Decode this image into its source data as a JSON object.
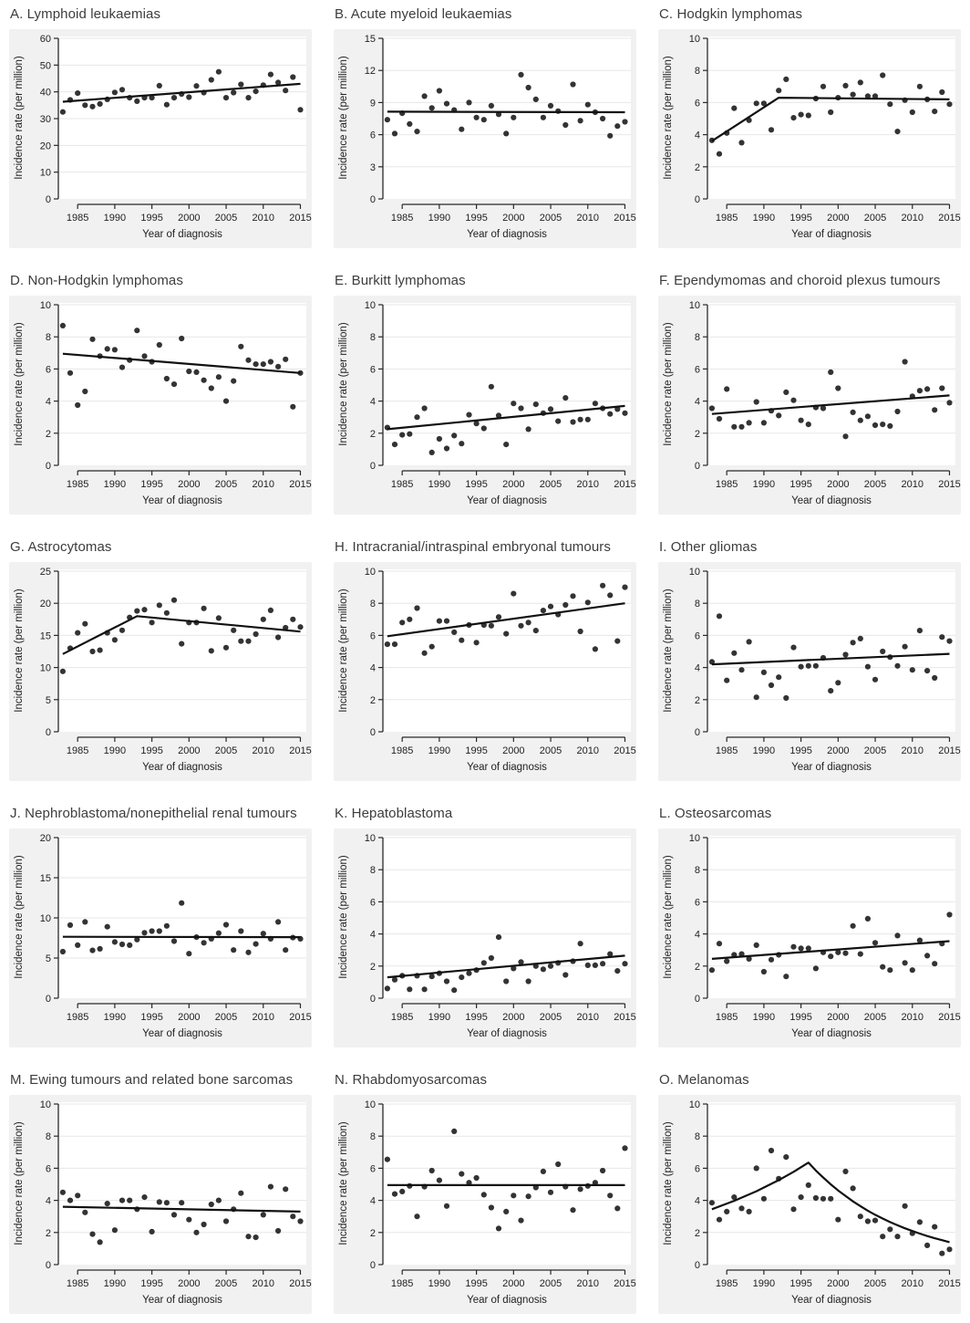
{
  "style": {
    "panel_bg": "#f1f1f1",
    "plot_bg": "#ffffff",
    "grid_color": "#e7e7e7",
    "axis_color": "#2a2a2a",
    "point_color": "#333333",
    "trend_color": "#111111",
    "title_color": "#3c3c3c"
  },
  "years": [
    1983,
    1984,
    1985,
    1986,
    1987,
    1988,
    1989,
    1990,
    1991,
    1992,
    1993,
    1994,
    1995,
    1996,
    1997,
    1998,
    1999,
    2000,
    2001,
    2002,
    2003,
    2004,
    2005,
    2006,
    2007,
    2008,
    2009,
    2010,
    2011,
    2012,
    2013,
    2014,
    2015
  ],
  "chart_data": [
    {
      "panel": "A",
      "title": "A. Lymphoid leukaemias",
      "type": "scatter",
      "xlabel": "Year of diagnosis",
      "ylabel": "Incidence rate (per million)",
      "xticks": [
        1985,
        1990,
        1995,
        2000,
        2005,
        2010,
        2015
      ],
      "yticks": [
        0,
        10,
        20,
        30,
        40,
        50,
        60
      ],
      "ylim": [
        0,
        60
      ],
      "xlim": [
        1982.4,
        2015.8
      ],
      "values": [
        32.5,
        37,
        39.5,
        35,
        34.5,
        35.5,
        37.2,
        39.8,
        40.8,
        37.8,
        36.5,
        37.8,
        37.8,
        42.3,
        35.2,
        37.8,
        39.2,
        38,
        42.2,
        39.7,
        44.5,
        47.5,
        37.8,
        39.7,
        42.8,
        37.8,
        40.2,
        42.5,
        46.5,
        43.5,
        40.5,
        45.5,
        33.3
      ],
      "trend": [
        [
          1983,
          36.3
        ],
        [
          2015,
          43.0
        ]
      ]
    },
    {
      "panel": "B",
      "title": "B. Acute myeloid leukaemias",
      "type": "scatter",
      "xlabel": "Year of diagnosis",
      "ylabel": "Incidence rate (per million)",
      "xticks": [
        1985,
        1990,
        1995,
        2000,
        2005,
        2010,
        2015
      ],
      "yticks": [
        0,
        3,
        6,
        9,
        12,
        15
      ],
      "ylim": [
        0,
        15
      ],
      "xlim": [
        1982.4,
        2015.8
      ],
      "values": [
        7.4,
        6.1,
        8.0,
        7.0,
        6.3,
        9.6,
        8.5,
        10.1,
        8.9,
        8.3,
        6.5,
        9.0,
        7.6,
        7.4,
        8.7,
        7.9,
        6.1,
        7.6,
        11.6,
        10.4,
        9.3,
        7.6,
        8.7,
        8.2,
        6.9,
        10.7,
        7.3,
        8.8,
        8.1,
        7.5,
        5.9,
        6.8,
        7.2
      ],
      "trend": [
        [
          1983,
          8.15
        ],
        [
          2015,
          8.1
        ]
      ]
    },
    {
      "panel": "C",
      "title": "C. Hodgkin lymphomas",
      "type": "scatter",
      "xlabel": "Year of diagnosis",
      "ylabel": "Incidence rate (per million)",
      "xticks": [
        1985,
        1990,
        1995,
        2000,
        2005,
        2010,
        2015
      ],
      "yticks": [
        0,
        2,
        4,
        6,
        8,
        10
      ],
      "ylim": [
        0,
        10
      ],
      "xlim": [
        1982.4,
        2015.8
      ],
      "values": [
        3.65,
        2.8,
        4.1,
        5.65,
        3.5,
        4.9,
        5.95,
        5.95,
        4.3,
        6.75,
        7.45,
        5.05,
        5.25,
        5.2,
        6.25,
        7.0,
        5.4,
        6.3,
        7.05,
        6.5,
        7.25,
        6.4,
        6.4,
        7.7,
        5.9,
        4.2,
        6.15,
        5.4,
        7.0,
        6.2,
        5.45,
        6.65,
        5.9
      ],
      "trend": [
        [
          1983,
          3.6
        ],
        [
          1992,
          6.3
        ],
        [
          2015,
          6.2
        ]
      ]
    },
    {
      "panel": "D",
      "title": "D. Non-Hodgkin lymphomas",
      "type": "scatter",
      "xlabel": "Year of diagnosis",
      "ylabel": "Incidence rate (per million)",
      "xticks": [
        1985,
        1990,
        1995,
        2000,
        2005,
        2010,
        2015
      ],
      "yticks": [
        0,
        2,
        4,
        6,
        8,
        10
      ],
      "ylim": [
        0,
        10
      ],
      "xlim": [
        1982.4,
        2015.8
      ],
      "values": [
        8.7,
        5.75,
        3.75,
        4.6,
        7.85,
        6.8,
        7.25,
        7.2,
        6.1,
        6.55,
        8.4,
        6.8,
        6.45,
        7.5,
        5.4,
        5.05,
        7.9,
        5.85,
        5.8,
        5.3,
        4.8,
        5.5,
        4.0,
        5.25,
        7.4,
        6.55,
        6.3,
        6.3,
        6.45,
        6.15,
        6.6,
        3.65,
        5.75
      ],
      "trend": [
        [
          1983,
          6.95
        ],
        [
          2015,
          5.75
        ]
      ]
    },
    {
      "panel": "E",
      "title": "E. Burkitt lymphomas",
      "type": "scatter",
      "xlabel": "Year of diagnosis",
      "ylabel": "Incidence rate (per million)",
      "xticks": [
        1985,
        1990,
        1995,
        2000,
        2005,
        2010,
        2015
      ],
      "yticks": [
        0,
        2,
        4,
        6,
        8,
        10
      ],
      "ylim": [
        0,
        10
      ],
      "xlim": [
        1982.4,
        2015.8
      ],
      "values": [
        2.35,
        1.3,
        1.9,
        1.95,
        3.0,
        3.55,
        0.8,
        1.65,
        1.05,
        1.85,
        1.35,
        3.15,
        2.6,
        2.3,
        4.9,
        3.1,
        1.3,
        3.85,
        3.55,
        2.25,
        3.8,
        3.25,
        3.5,
        2.75,
        4.2,
        2.7,
        2.85,
        2.85,
        3.85,
        3.55,
        3.2,
        3.5,
        3.25
      ],
      "trend": [
        [
          1983,
          2.25
        ],
        [
          2015,
          3.7
        ]
      ]
    },
    {
      "panel": "F",
      "title": "F. Ependymomas and choroid plexus tumours",
      "type": "scatter",
      "xlabel": "Year of diagnosis",
      "ylabel": "Incidence rate (per million)",
      "xticks": [
        1985,
        1990,
        1995,
        2000,
        2005,
        2010,
        2015
      ],
      "yticks": [
        0,
        2,
        4,
        6,
        8,
        10
      ],
      "ylim": [
        0,
        10
      ],
      "xlim": [
        1982.4,
        2015.8
      ],
      "values": [
        3.55,
        2.9,
        4.75,
        2.4,
        2.4,
        2.65,
        3.95,
        2.65,
        3.4,
        3.1,
        4.55,
        4.05,
        2.8,
        2.55,
        3.6,
        3.55,
        5.8,
        4.8,
        1.8,
        3.3,
        2.8,
        3.05,
        2.5,
        2.55,
        2.45,
        3.35,
        6.45,
        4.3,
        4.65,
        4.75,
        3.45,
        4.8,
        3.9
      ],
      "trend": [
        [
          1983,
          3.2
        ],
        [
          2015,
          4.35
        ]
      ]
    },
    {
      "panel": "G",
      "title": "G. Astrocytomas",
      "type": "scatter",
      "xlabel": "Year of diagnosis",
      "ylabel": "Incidence rate (per million)",
      "xticks": [
        1985,
        1990,
        1995,
        2000,
        2005,
        2010,
        2015
      ],
      "yticks": [
        0,
        5,
        10,
        15,
        20,
        25
      ],
      "ylim": [
        0,
        25
      ],
      "xlim": [
        1982.4,
        2015.8
      ],
      "values": [
        9.4,
        13.0,
        15.4,
        16.8,
        12.5,
        12.7,
        15.4,
        14.3,
        15.8,
        17.8,
        18.8,
        19.0,
        17.0,
        19.7,
        18.5,
        20.5,
        13.7,
        17.0,
        17.0,
        19.2,
        12.6,
        17.7,
        13.1,
        15.8,
        14.1,
        14.1,
        15.2,
        17.5,
        18.9,
        14.7,
        16.2,
        17.5,
        16.3
      ],
      "trend": [
        [
          1983,
          12.1
        ],
        [
          1993,
          18.0
        ],
        [
          2015,
          15.6
        ]
      ]
    },
    {
      "panel": "H",
      "title": "H. Intracranial/intraspinal embryonal tumours",
      "type": "scatter",
      "xlabel": "Year of diagnosis",
      "ylabel": "Incidence rate (per million)",
      "xticks": [
        1985,
        1990,
        1995,
        2000,
        2005,
        2010,
        2015
      ],
      "yticks": [
        0,
        2,
        4,
        6,
        8,
        10
      ],
      "ylim": [
        0,
        10
      ],
      "xlim": [
        1982.4,
        2015.8
      ],
      "values": [
        5.45,
        5.45,
        6.8,
        7.0,
        7.7,
        4.9,
        5.3,
        6.9,
        6.9,
        6.2,
        5.7,
        6.65,
        5.55,
        6.65,
        6.6,
        7.15,
        6.1,
        8.6,
        6.6,
        6.8,
        6.3,
        7.55,
        7.8,
        7.3,
        7.9,
        8.45,
        6.25,
        8.05,
        5.15,
        9.1,
        8.5,
        5.65,
        9.0
      ],
      "trend": [
        [
          1983,
          5.95
        ],
        [
          2015,
          8.0
        ]
      ]
    },
    {
      "panel": "I",
      "title": "I. Other gliomas",
      "type": "scatter",
      "xlabel": "Year of diagnosis",
      "ylabel": "Incidence rate (per million)",
      "xticks": [
        1985,
        1990,
        1995,
        2000,
        2005,
        2010,
        2015
      ],
      "yticks": [
        0,
        2,
        4,
        6,
        8,
        10
      ],
      "ylim": [
        0,
        10
      ],
      "xlim": [
        1982.4,
        2015.8
      ],
      "values": [
        4.35,
        7.2,
        3.2,
        4.9,
        3.85,
        5.6,
        2.15,
        3.7,
        2.9,
        3.4,
        2.1,
        5.25,
        4.05,
        4.1,
        4.1,
        4.6,
        2.55,
        3.05,
        4.8,
        5.55,
        5.8,
        4.05,
        3.25,
        5.0,
        4.65,
        4.1,
        5.3,
        3.85,
        6.3,
        3.8,
        3.35,
        5.9,
        5.65
      ],
      "trend": [
        [
          1983,
          4.2
        ],
        [
          2015,
          4.85
        ]
      ]
    },
    {
      "panel": "J",
      "title": "J. Nephroblastoma/nonepithelial renal tumours",
      "type": "scatter",
      "xlabel": "Year of diagnosis",
      "ylabel": "Incidence rate (per million)",
      "xticks": [
        1985,
        1990,
        1995,
        2000,
        2005,
        2010,
        2015
      ],
      "yticks": [
        0,
        5,
        10,
        15,
        20
      ],
      "ylim": [
        0,
        20
      ],
      "xlim": [
        1982.4,
        2015.8
      ],
      "values": [
        5.8,
        9.1,
        6.6,
        9.5,
        5.95,
        6.15,
        8.9,
        7.0,
        6.7,
        6.6,
        7.3,
        8.15,
        8.35,
        8.35,
        9.0,
        7.1,
        11.85,
        5.55,
        7.6,
        6.9,
        7.4,
        8.1,
        9.15,
        6.0,
        8.35,
        5.7,
        6.75,
        8.05,
        7.4,
        9.5,
        6.0,
        7.55,
        7.4
      ],
      "trend": [
        [
          1983,
          7.65
        ],
        [
          2015,
          7.6
        ]
      ]
    },
    {
      "panel": "K",
      "title": "K. Hepatoblastoma",
      "type": "scatter",
      "xlabel": "Year of diagnosis",
      "ylabel": "Incidence rate (per million)",
      "xticks": [
        1985,
        1990,
        1995,
        2000,
        2005,
        2010,
        2015
      ],
      "yticks": [
        0,
        2,
        4,
        6,
        8,
        10
      ],
      "ylim": [
        0,
        10
      ],
      "xlim": [
        1982.4,
        2015.8
      ],
      "values": [
        0.6,
        1.15,
        1.4,
        0.55,
        1.4,
        0.55,
        1.35,
        1.55,
        1.05,
        0.5,
        1.3,
        1.55,
        1.75,
        2.2,
        2.5,
        3.8,
        1.05,
        1.85,
        2.25,
        1.05,
        2.0,
        1.8,
        2.0,
        2.2,
        1.45,
        2.3,
        3.4,
        2.05,
        2.05,
        2.15,
        2.75,
        1.7,
        2.15
      ],
      "trend": [
        [
          1983,
          1.3
        ],
        [
          2015,
          2.65
        ]
      ]
    },
    {
      "panel": "L",
      "title": "L. Osteosarcomas",
      "type": "scatter",
      "xlabel": "Year of diagnosis",
      "ylabel": "Incidence rate (per million)",
      "xticks": [
        1985,
        1990,
        1995,
        2000,
        2005,
        2010,
        2015
      ],
      "yticks": [
        0,
        2,
        4,
        6,
        8,
        10
      ],
      "ylim": [
        0,
        10
      ],
      "xlim": [
        1982.4,
        2015.8
      ],
      "values": [
        1.75,
        3.4,
        2.3,
        2.7,
        2.75,
        2.45,
        3.3,
        1.65,
        2.4,
        2.7,
        1.35,
        3.2,
        3.1,
        3.1,
        1.85,
        2.85,
        2.6,
        2.85,
        2.8,
        4.5,
        2.75,
        4.95,
        3.45,
        1.95,
        1.75,
        3.9,
        2.2,
        1.75,
        3.6,
        2.65,
        2.15,
        3.4,
        5.2
      ],
      "trend": [
        [
          1983,
          2.45
        ],
        [
          2015,
          3.55
        ]
      ]
    },
    {
      "panel": "M",
      "title": "M. Ewing tumours and related bone sarcomas",
      "type": "scatter",
      "xlabel": "Year of diagnosis",
      "ylabel": "Incidence rate (per million)",
      "xticks": [
        1985,
        1990,
        1995,
        2000,
        2005,
        2010,
        2015
      ],
      "yticks": [
        0,
        2,
        4,
        6,
        8,
        10
      ],
      "ylim": [
        0,
        10
      ],
      "xlim": [
        1982.4,
        2015.8
      ],
      "values": [
        4.5,
        4.0,
        4.3,
        3.25,
        1.9,
        1.4,
        3.8,
        2.15,
        4.0,
        4.0,
        3.45,
        4.2,
        2.05,
        3.9,
        3.85,
        3.1,
        3.85,
        2.8,
        2.0,
        2.5,
        3.75,
        4.0,
        2.7,
        3.45,
        4.45,
        1.75,
        1.7,
        3.1,
        4.85,
        2.1,
        4.7,
        3.0,
        2.7
      ],
      "trend": [
        [
          1983,
          3.6
        ],
        [
          2015,
          3.3
        ]
      ]
    },
    {
      "panel": "N",
      "title": "N. Rhabdomyosarcomas",
      "type": "scatter",
      "xlabel": "Year of diagnosis",
      "ylabel": "Incidence rate (per million)",
      "xticks": [
        1985,
        1990,
        1995,
        2000,
        2005,
        2010,
        2015
      ],
      "yticks": [
        0,
        2,
        4,
        6,
        8,
        10
      ],
      "ylim": [
        0,
        10
      ],
      "xlim": [
        1982.4,
        2015.8
      ],
      "values": [
        6.55,
        4.4,
        4.55,
        4.9,
        3.0,
        4.85,
        5.85,
        5.25,
        3.65,
        8.3,
        5.65,
        5.1,
        5.4,
        4.35,
        3.55,
        2.25,
        3.3,
        4.3,
        2.75,
        4.25,
        4.8,
        5.8,
        4.5,
        6.25,
        4.85,
        3.4,
        4.7,
        4.9,
        5.1,
        5.85,
        4.3,
        3.5,
        7.25
      ],
      "trend": [
        [
          1983,
          4.95
        ],
        [
          2015,
          4.95
        ]
      ]
    },
    {
      "panel": "O",
      "title": "O. Melanomas",
      "type": "scatter",
      "xlabel": "Year of diagnosis",
      "ylabel": "Incidence rate (per million)",
      "xticks": [
        1985,
        1990,
        1995,
        2000,
        2005,
        2010,
        2015
      ],
      "yticks": [
        0,
        2,
        4,
        6,
        8,
        10
      ],
      "ylim": [
        0,
        10
      ],
      "xlim": [
        1982.4,
        2015.8
      ],
      "values": [
        3.85,
        2.8,
        3.3,
        4.2,
        3.5,
        3.3,
        6.0,
        4.1,
        7.1,
        5.35,
        6.7,
        3.45,
        4.2,
        4.95,
        4.15,
        4.1,
        4.1,
        2.8,
        5.8,
        4.75,
        3.0,
        2.7,
        2.75,
        1.75,
        2.2,
        1.75,
        3.65,
        1.95,
        2.65,
        1.2,
        2.35,
        0.7,
        0.95
      ],
      "trend": [
        [
          1983,
          3.45
        ],
        [
          1986,
          3.97
        ],
        [
          1989,
          4.57
        ],
        [
          1992,
          5.26
        ],
        [
          1994,
          5.78
        ],
        [
          1996,
          6.35
        ],
        [
          1997,
          5.86
        ],
        [
          1998,
          5.42
        ],
        [
          1999,
          5.0
        ],
        [
          2000,
          4.62
        ],
        [
          2001,
          4.27
        ],
        [
          2002,
          3.94
        ],
        [
          2003,
          3.64
        ],
        [
          2004,
          3.36
        ],
        [
          2005,
          3.1
        ],
        [
          2006,
          2.87
        ],
        [
          2007,
          2.65
        ],
        [
          2008,
          2.45
        ],
        [
          2009,
          2.26
        ],
        [
          2010,
          2.09
        ],
        [
          2011,
          1.93
        ],
        [
          2012,
          1.78
        ],
        [
          2013,
          1.64
        ],
        [
          2014,
          1.52
        ],
        [
          2015,
          1.4
        ]
      ]
    }
  ]
}
